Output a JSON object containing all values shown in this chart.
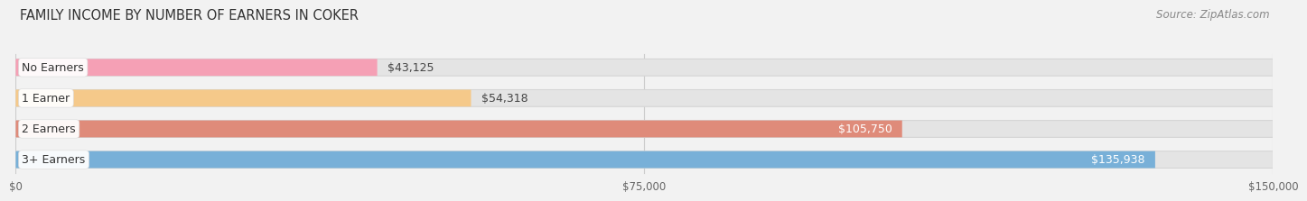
{
  "title": "FAMILY INCOME BY NUMBER OF EARNERS IN COKER",
  "source": "Source: ZipAtlas.com",
  "categories": [
    "No Earners",
    "1 Earner",
    "2 Earners",
    "3+ Earners"
  ],
  "values": [
    43125,
    54318,
    105750,
    135938
  ],
  "bar_colors": [
    "#f5a0b5",
    "#f5c98a",
    "#df8b7a",
    "#78b0d8"
  ],
  "label_colors": [
    "#444444",
    "#444444",
    "#ffffff",
    "#ffffff"
  ],
  "x_max": 150000,
  "x_ticks": [
    0,
    75000,
    150000
  ],
  "x_tick_labels": [
    "$0",
    "$75,000",
    "$150,000"
  ],
  "background_color": "#f2f2f2",
  "bar_bg_color": "#e4e4e4",
  "bar_bg_edge_color": "#d5d5d5",
  "title_fontsize": 10.5,
  "source_fontsize": 8.5,
  "label_fontsize": 9,
  "category_fontsize": 9
}
